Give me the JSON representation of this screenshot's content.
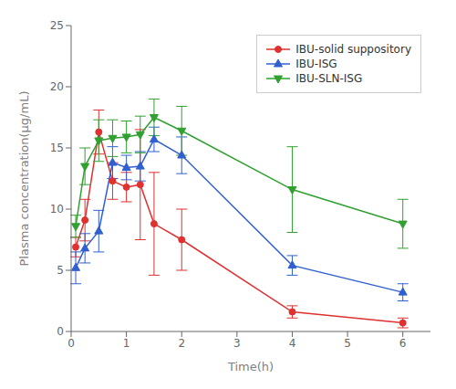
{
  "chart_data": {
    "type": "line",
    "xlabel": "Time(h)",
    "ylabel": "Plasma concentration(μg/mL)",
    "xlim": [
      0,
      6.5
    ],
    "ylim": [
      0,
      25
    ],
    "xticks": [
      0,
      1,
      2,
      3,
      4,
      5,
      6
    ],
    "yticks": [
      0,
      5,
      10,
      15,
      20,
      25
    ],
    "x": [
      0.083,
      0.25,
      0.5,
      0.75,
      1.0,
      1.25,
      1.5,
      2.0,
      4.0,
      6.0
    ],
    "series": [
      {
        "name": "IBU-solid suppository",
        "color": "#e03030",
        "marker": "circle",
        "values": [
          6.9,
          9.1,
          16.3,
          12.3,
          11.8,
          12.0,
          8.8,
          7.5,
          1.6,
          0.7
        ],
        "yerr": [
          0.8,
          1.7,
          1.8,
          1.5,
          1.2,
          4.5,
          4.2,
          2.5,
          0.5,
          0.4
        ]
      },
      {
        "name": "IBU-ISG",
        "color": "#3060d0",
        "marker": "triangle",
        "values": [
          5.2,
          6.8,
          8.2,
          13.8,
          13.4,
          13.5,
          15.7,
          14.4,
          5.4,
          3.2
        ],
        "yerr": [
          1.3,
          1.2,
          1.7,
          1.3,
          1.0,
          1.2,
          1.0,
          1.5,
          0.8,
          0.7
        ]
      },
      {
        "name": "IBU-SLN-ISG",
        "color": "#30a030",
        "marker": "triangle-down",
        "values": [
          8.6,
          13.5,
          15.6,
          15.8,
          15.9,
          16.1,
          17.5,
          16.4,
          11.6,
          8.8
        ],
        "yerr": [
          0.9,
          1.5,
          1.7,
          1.5,
          1.3,
          1.5,
          1.5,
          2.0,
          3.5,
          2.0
        ]
      }
    ],
    "legend": "upper right",
    "grid": false
  }
}
